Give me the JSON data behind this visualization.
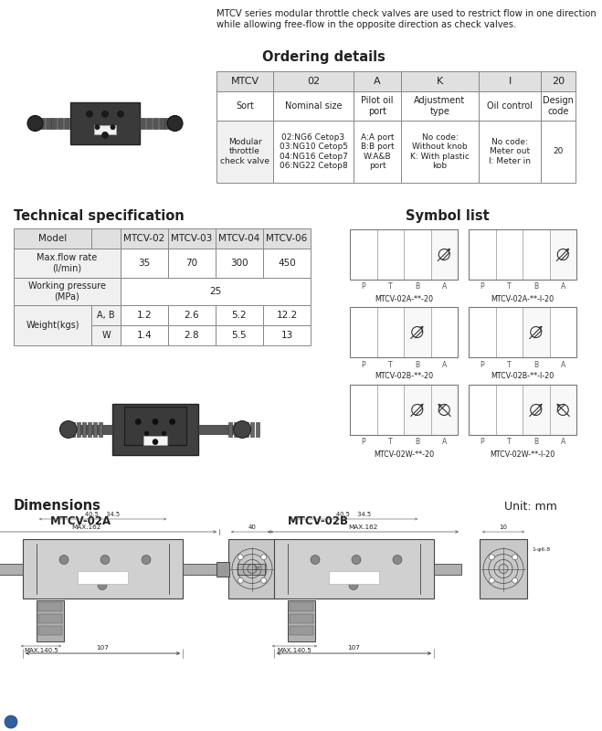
{
  "title_intro": "MTCV series modular throttle check valves are used to restrict flow in one direction\nwhile allowing free-flow in the opposite direction as check valves.",
  "ordering_title": "Ordering details",
  "ordering_headers": [
    "MTCV",
    "02",
    "A",
    "K",
    "I",
    "20"
  ],
  "ordering_row1": [
    "Sort",
    "Nominal size",
    "Pilot oil\nport",
    "Adjustment\ntype",
    "Oil control",
    "Design\ncode"
  ],
  "ordering_row2": [
    "Modular\nthrottle\ncheck valve",
    "02:NG6 Cetop3\n03:NG10 Cetop5\n04:NG16 Cetop7\n06:NG22 Cetop8",
    "A:A port\nB:B port\nW:A&B\nport",
    "No code:\nWithout knob\nK: With plastic\nkob",
    "No code:\nMeter out\nI: Meter in",
    "20"
  ],
  "tech_title": "Technical specification",
  "symbol_title": "Symbol list",
  "symbol_labels": [
    "MTCV-02A-**-20",
    "MTCV-02A-**-I-20",
    "MTCV-02B-**-20",
    "MTCV-02B-**-I-20",
    "MTCV-02W-**-20",
    "MTCV-02W-**-I-20"
  ],
  "symbol_port_labels": [
    "P",
    "T",
    "B",
    "A"
  ],
  "dimensions_title": "Dimensions",
  "unit_label": "Unit: mm",
  "dim_labels": [
    "MTCV-02A",
    "MTCV-02B"
  ],
  "bg_color": "#ffffff",
  "text_color": "#222222",
  "header_bg": "#e0e0e0",
  "cell_bg_light": "#f0f0f0"
}
